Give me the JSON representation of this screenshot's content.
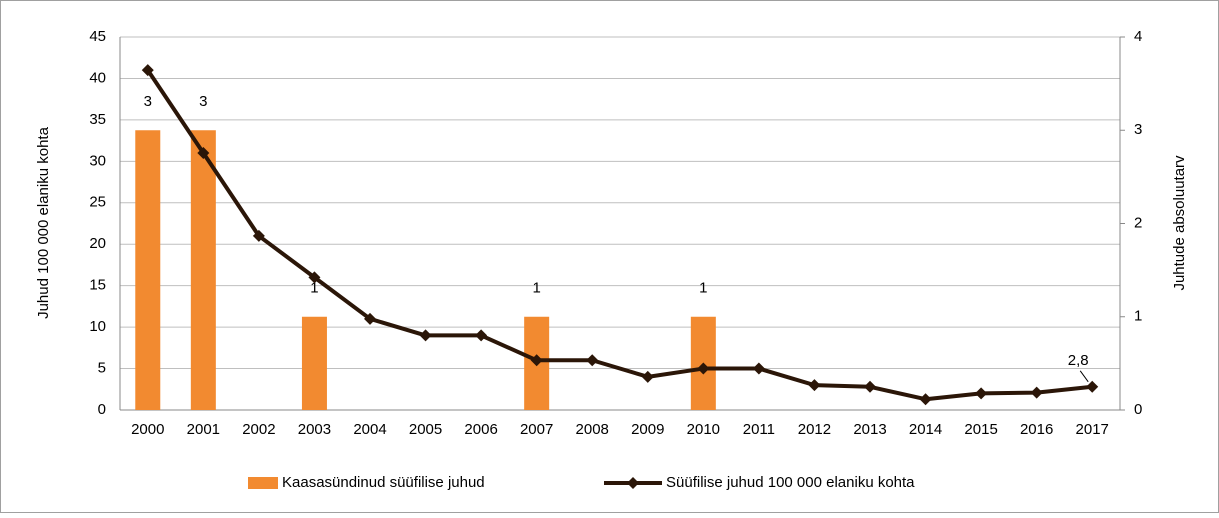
{
  "chart_data": {
    "type": "bar-line",
    "categories": [
      "2000",
      "2001",
      "2002",
      "2003",
      "2004",
      "2005",
      "2006",
      "2007",
      "2008",
      "2009",
      "2010",
      "2011",
      "2012",
      "2013",
      "2014",
      "2015",
      "2016",
      "2017"
    ],
    "series": [
      {
        "name": "Kaasasündinud süüfilise juhud",
        "type": "bar",
        "axis": "y2",
        "color": "#f28a30",
        "values": [
          3,
          3,
          null,
          1,
          null,
          null,
          null,
          1,
          null,
          null,
          1,
          null,
          null,
          null,
          null,
          null,
          null,
          null
        ]
      },
      {
        "name": "Süüfilise juhud 100 000 elaniku kohta",
        "type": "line",
        "axis": "y",
        "color": "#2b1608",
        "values": [
          41,
          31,
          21,
          16,
          11,
          9,
          9,
          6,
          6,
          4,
          5,
          5,
          3,
          2.8,
          1.3,
          2,
          2.1,
          2.8
        ],
        "value_labels": [
          null,
          null,
          null,
          null,
          null,
          null,
          null,
          null,
          null,
          null,
          null,
          null,
          null,
          null,
          null,
          null,
          null,
          "2,8"
        ]
      }
    ],
    "ylabel": "Juhud 100 000 elaniku kohta",
    "y2label": "Juhtude absoluutarv",
    "ylim": [
      0,
      45
    ],
    "yticks": [
      0,
      5,
      10,
      15,
      20,
      25,
      30,
      35,
      40,
      45
    ],
    "y2lim": [
      0,
      4
    ],
    "y2ticks": [
      0,
      1,
      2,
      3,
      4
    ],
    "grid": true,
    "legend": "bottom"
  }
}
